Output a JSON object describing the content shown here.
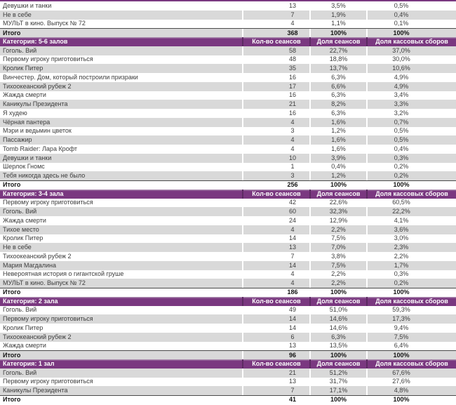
{
  "colors": {
    "header_bg": "#7a3880",
    "header_highlight": "#a684aa",
    "header_separator": "#5c2a62",
    "stripe_gray": "#d9d9d9",
    "row_text": "#3d3d3d",
    "total_text": "#141414"
  },
  "chart_data": {
    "type": "table",
    "columns": [
      "",
      "Кол-во сеансов",
      "Доля сеансов",
      "Доля кассовых сборов"
    ],
    "total_label": "Итого",
    "sections": [
      {
        "category": "",
        "rows": [
          [
            "Девушки и танки",
            "13",
            "3,5%",
            "0,5%"
          ],
          [
            "Не в себе",
            "7",
            "1,9%",
            "0,4%"
          ],
          [
            "МУЛЬТ в кино. Выпуск № 72",
            "4",
            "1,1%",
            "0,1%"
          ]
        ],
        "total": [
          "Итого",
          "368",
          "100%",
          "100%"
        ]
      },
      {
        "category": "Категория: 5-6 залов",
        "rows": [
          [
            "Гоголь. Вий",
            "58",
            "22,7%",
            "37,0%"
          ],
          [
            "Первому игроку приготовиться",
            "48",
            "18,8%",
            "30,0%"
          ],
          [
            "Кролик Питер",
            "35",
            "13,7%",
            "10,6%"
          ],
          [
            "Винчестер. Дом, который построили призраки",
            "16",
            "6,3%",
            "4,9%"
          ],
          [
            "Тихоокеанский рубеж 2",
            "17",
            "6,6%",
            "4,9%"
          ],
          [
            "Жажда смерти",
            "16",
            "6,3%",
            "3,4%"
          ],
          [
            "Каникулы Президента",
            "21",
            "8,2%",
            "3,3%"
          ],
          [
            "Я худею",
            "16",
            "6,3%",
            "3,2%"
          ],
          [
            "Чёрная пантера",
            "4",
            "1,6%",
            "0,7%"
          ],
          [
            "Мэри и ведьмин цветок",
            "3",
            "1,2%",
            "0,5%"
          ],
          [
            "Пассажир",
            "4",
            "1,6%",
            "0,5%"
          ],
          [
            "Tomb Raider: Лара Крофт",
            "4",
            "1,6%",
            "0,4%"
          ],
          [
            "Девушки и танки",
            "10",
            "3,9%",
            "0,3%"
          ],
          [
            "Шерлок Гномс",
            "1",
            "0,4%",
            "0,2%"
          ],
          [
            "Тебя никогда здесь не было",
            "3",
            "1,2%",
            "0,2%"
          ]
        ],
        "total": [
          "Итого",
          "256",
          "100%",
          "100%"
        ]
      },
      {
        "category": "Категория: 3-4 зала",
        "rows": [
          [
            "Первому игроку приготовиться",
            "42",
            "22,6%",
            "60,5%"
          ],
          [
            "Гоголь. Вий",
            "60",
            "32,3%",
            "22,2%"
          ],
          [
            "Жажда смерти",
            "24",
            "12,9%",
            "4,1%"
          ],
          [
            "Тихое место",
            "4",
            "2,2%",
            "3,6%"
          ],
          [
            "Кролик Питер",
            "14",
            "7,5%",
            "3,0%"
          ],
          [
            "Не в себе",
            "13",
            "7,0%",
            "2,3%"
          ],
          [
            "Тихоокеанский рубеж 2",
            "7",
            "3,8%",
            "2,2%"
          ],
          [
            "Мария Магдалина",
            "14",
            "7,5%",
            "1,7%"
          ],
          [
            "Невероятная история о гигантской груше",
            "4",
            "2,2%",
            "0,3%"
          ],
          [
            "МУЛЬТ в кино. Выпуск № 72",
            "4",
            "2,2%",
            "0,2%"
          ]
        ],
        "total": [
          "Итого",
          "186",
          "100%",
          "100%"
        ]
      },
      {
        "category": "Категория: 2 зала",
        "rows": [
          [
            "Гоголь. Вий",
            "49",
            "51,0%",
            "59,3%"
          ],
          [
            "Первому игроку приготовиться",
            "14",
            "14,6%",
            "17,3%"
          ],
          [
            "Кролик Питер",
            "14",
            "14,6%",
            "9,4%"
          ],
          [
            "Тихоокеанский рубеж 2",
            "6",
            "6,3%",
            "7,5%"
          ],
          [
            "Жажда смерти",
            "13",
            "13,5%",
            "6,4%"
          ]
        ],
        "total": [
          "Итого",
          "96",
          "100%",
          "100%"
        ]
      },
      {
        "category": "Категория: 1 зал",
        "rows": [
          [
            "Гоголь. Вий",
            "21",
            "51,2%",
            "67,6%"
          ],
          [
            "Первому игроку приготовиться",
            "13",
            "31,7%",
            "27,6%"
          ],
          [
            "Каникулы Президента",
            "7",
            "17,1%",
            "4,8%"
          ]
        ],
        "total": [
          "Итого",
          "41",
          "100%",
          "100%"
        ]
      }
    ]
  }
}
